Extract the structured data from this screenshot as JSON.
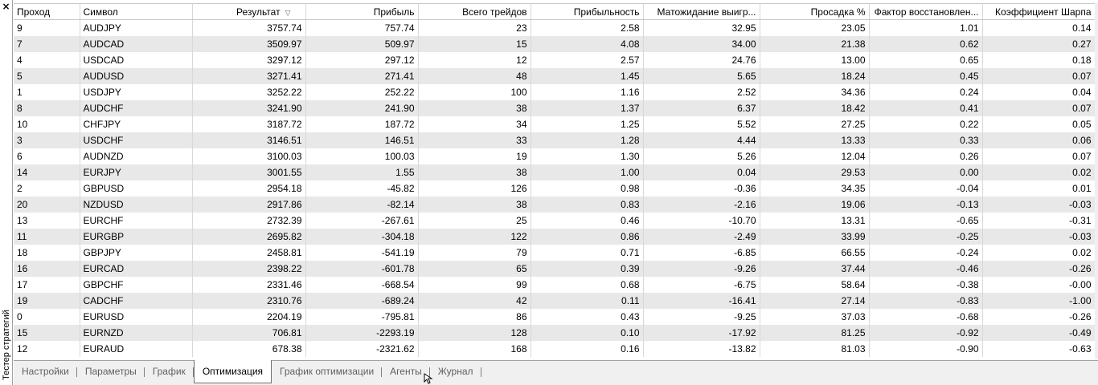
{
  "sidebar": {
    "title": "Тестер стратегий",
    "close": "×"
  },
  "table": {
    "columns": [
      "Проход",
      "Символ",
      "Результат",
      "Прибыль",
      "Всего трейдов",
      "Прибыльность",
      "Матожидание выигр...",
      "Просадка %",
      "Фактор восстановлен...",
      "Коэффициент Шарпа"
    ],
    "rows": [
      [
        "9",
        "AUDJPY",
        "3757.74",
        "757.74",
        "23",
        "2.58",
        "32.95",
        "23.05",
        "1.01",
        "0.14"
      ],
      [
        "7",
        "AUDCAD",
        "3509.97",
        "509.97",
        "15",
        "4.08",
        "34.00",
        "21.38",
        "0.62",
        "0.27"
      ],
      [
        "4",
        "USDCAD",
        "3297.12",
        "297.12",
        "12",
        "2.57",
        "24.76",
        "13.00",
        "0.65",
        "0.18"
      ],
      [
        "5",
        "AUDUSD",
        "3271.41",
        "271.41",
        "48",
        "1.45",
        "5.65",
        "18.24",
        "0.45",
        "0.07"
      ],
      [
        "1",
        "USDJPY",
        "3252.22",
        "252.22",
        "100",
        "1.16",
        "2.52",
        "34.36",
        "0.24",
        "0.04"
      ],
      [
        "8",
        "AUDCHF",
        "3241.90",
        "241.90",
        "38",
        "1.37",
        "6.37",
        "18.42",
        "0.41",
        "0.07"
      ],
      [
        "10",
        "CHFJPY",
        "3187.72",
        "187.72",
        "34",
        "1.25",
        "5.52",
        "27.25",
        "0.22",
        "0.05"
      ],
      [
        "3",
        "USDCHF",
        "3146.51",
        "146.51",
        "33",
        "1.28",
        "4.44",
        "13.33",
        "0.33",
        "0.06"
      ],
      [
        "6",
        "AUDNZD",
        "3100.03",
        "100.03",
        "19",
        "1.30",
        "5.26",
        "12.04",
        "0.26",
        "0.07"
      ],
      [
        "14",
        "EURJPY",
        "3001.55",
        "1.55",
        "38",
        "1.00",
        "0.04",
        "29.53",
        "0.00",
        "0.02"
      ],
      [
        "2",
        "GBPUSD",
        "2954.18",
        "-45.82",
        "126",
        "0.98",
        "-0.36",
        "34.35",
        "-0.04",
        "0.01"
      ],
      [
        "20",
        "NZDUSD",
        "2917.86",
        "-82.14",
        "38",
        "0.83",
        "-2.16",
        "19.06",
        "-0.13",
        "-0.03"
      ],
      [
        "13",
        "EURCHF",
        "2732.39",
        "-267.61",
        "25",
        "0.46",
        "-10.70",
        "13.31",
        "-0.65",
        "-0.31"
      ],
      [
        "11",
        "EURGBP",
        "2695.82",
        "-304.18",
        "122",
        "0.86",
        "-2.49",
        "33.99",
        "-0.25",
        "-0.03"
      ],
      [
        "18",
        "GBPJPY",
        "2458.81",
        "-541.19",
        "79",
        "0.71",
        "-6.85",
        "66.55",
        "-0.24",
        "0.02"
      ],
      [
        "16",
        "EURCAD",
        "2398.22",
        "-601.78",
        "65",
        "0.39",
        "-9.26",
        "37.44",
        "-0.46",
        "-0.26"
      ],
      [
        "17",
        "GBPCHF",
        "2331.46",
        "-668.54",
        "99",
        "0.68",
        "-6.75",
        "58.64",
        "-0.38",
        "-0.00"
      ],
      [
        "19",
        "CADCHF",
        "2310.76",
        "-689.24",
        "42",
        "0.11",
        "-16.41",
        "27.14",
        "-0.83",
        "-1.00"
      ],
      [
        "0",
        "EURUSD",
        "2204.19",
        "-795.81",
        "86",
        "0.43",
        "-9.25",
        "37.03",
        "-0.68",
        "-0.26"
      ],
      [
        "15",
        "EURNZD",
        "706.81",
        "-2293.19",
        "128",
        "0.10",
        "-17.92",
        "81.25",
        "-0.92",
        "-0.49"
      ],
      [
        "12",
        "EURAUD",
        "678.38",
        "-2321.62",
        "168",
        "0.16",
        "-13.82",
        "81.03",
        "-0.90",
        "-0.63"
      ]
    ],
    "sort_column_icon": "sort-descending-icon",
    "sort_glyph": "▽"
  },
  "tabs": [
    {
      "label": "Настройки",
      "active": false
    },
    {
      "label": "Параметры",
      "active": false
    },
    {
      "label": "График",
      "active": false
    },
    {
      "label": "Оптимизация",
      "active": true
    },
    {
      "label": "График оптимизации",
      "active": false
    },
    {
      "label": "Агенты",
      "active": false
    },
    {
      "label": "Журнал",
      "active": false
    }
  ]
}
